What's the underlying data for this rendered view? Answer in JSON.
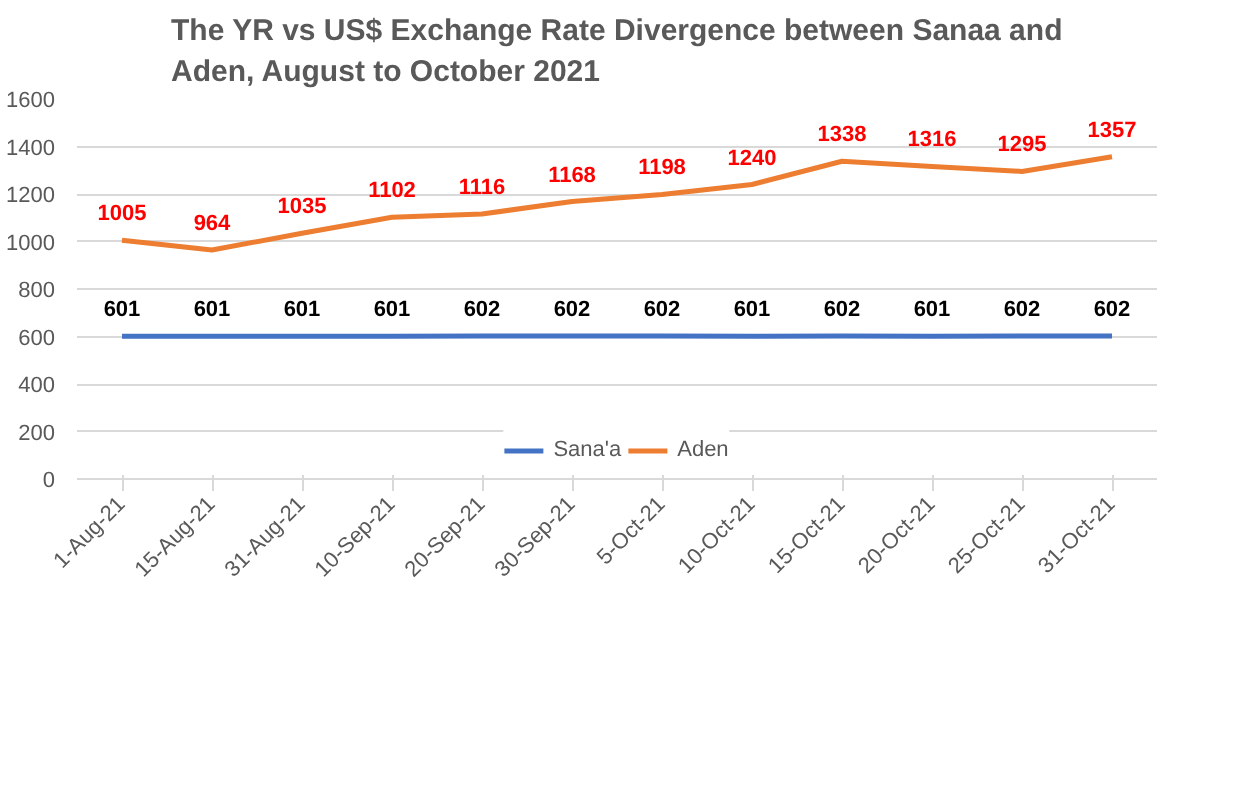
{
  "chart_data": {
    "type": "line",
    "title": "The YR vs US$ Exchange Rate Divergence between Sanaa and Aden, August to October 2021",
    "categories": [
      "1-Aug-21",
      "15-Aug-21",
      "31-Aug-21",
      "10-Sep-21",
      "20-Sep-21",
      "30-Sep-21",
      "5-Oct-21",
      "10-Oct-21",
      "15-Oct-21",
      "20-Oct-21",
      "25-Oct-21",
      "31-Oct-21"
    ],
    "series": [
      {
        "name": "Sana'a",
        "color": "#4472c4",
        "values": [
          601,
          601,
          601,
          601,
          602,
          602,
          602,
          601,
          602,
          601,
          602,
          602
        ]
      },
      {
        "name": "Aden",
        "color": "#ed7d31",
        "values": [
          1005,
          964,
          1035,
          1102,
          1116,
          1168,
          1198,
          1240,
          1338,
          1316,
          1295,
          1357
        ]
      }
    ],
    "ylim": [
      0,
      1600
    ],
    "yticks": [
      0,
      200,
      400,
      600,
      800,
      1000,
      1200,
      1400,
      1600
    ],
    "grid": "y",
    "legend": "bottom",
    "data_labels": true,
    "marker": "none",
    "line_style": "solid"
  }
}
